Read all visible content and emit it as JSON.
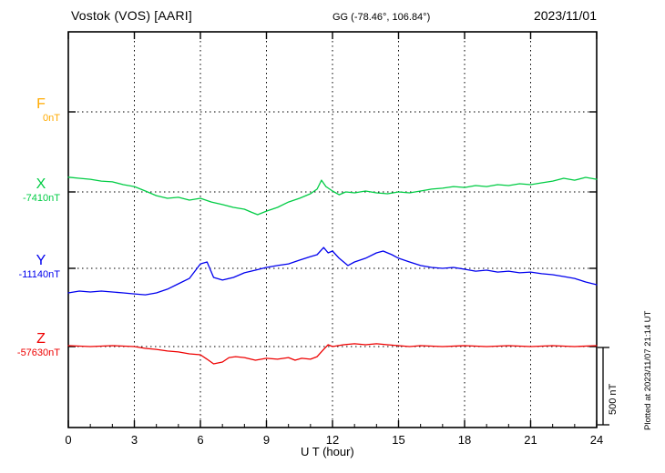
{
  "header": {
    "station": "Vostok (VOS)  [AARI]",
    "coords": "GG (-78.46°, 106.84°)",
    "date": "2023/11/01"
  },
  "axis": {
    "xlabel": "U T (hour)"
  },
  "scale_bar": {
    "label": "500 nT",
    "nT": 500
  },
  "footer": {
    "plotted_note": "Plotted at 2023/11/07 21:14 UT"
  },
  "chart_data": {
    "type": "line",
    "title": "Vostok (VOS)  [AARI] magnetogram",
    "xlabel": "U T (hour)",
    "xlim": [
      0,
      24
    ],
    "x_ticks": [
      0,
      3,
      6,
      9,
      12,
      15,
      18,
      21,
      24
    ],
    "grid": "vertical dotted at 3h intervals, dotted horizontal baseline per component",
    "scale_nT_per_division": 500,
    "series": [
      {
        "name": "F",
        "baseline_label": "0nT",
        "color": "#FFAA00",
        "points": []
      },
      {
        "name": "X",
        "baseline_label": "-7410nT",
        "color": "#00CC44",
        "points": [
          [
            0,
            95
          ],
          [
            0.5,
            88
          ],
          [
            1,
            82
          ],
          [
            1.5,
            70
          ],
          [
            2,
            65
          ],
          [
            2.5,
            47
          ],
          [
            3,
            35
          ],
          [
            3.5,
            6
          ],
          [
            4,
            -24
          ],
          [
            4.5,
            -41
          ],
          [
            5,
            -35
          ],
          [
            5.5,
            -53
          ],
          [
            6,
            -41
          ],
          [
            6.5,
            -65
          ],
          [
            7,
            -82
          ],
          [
            7.5,
            -100
          ],
          [
            8,
            -112
          ],
          [
            8.3,
            -130
          ],
          [
            8.6,
            -147
          ],
          [
            9,
            -124
          ],
          [
            9.5,
            -100
          ],
          [
            10,
            -65
          ],
          [
            10.5,
            -41
          ],
          [
            11,
            -12
          ],
          [
            11.3,
            18
          ],
          [
            11.5,
            76
          ],
          [
            11.7,
            35
          ],
          [
            12,
            6
          ],
          [
            12.3,
            -18
          ],
          [
            12.6,
            0
          ],
          [
            13,
            -6
          ],
          [
            13.5,
            6
          ],
          [
            14,
            -6
          ],
          [
            14.5,
            -12
          ],
          [
            15,
            0
          ],
          [
            15.5,
            -6
          ],
          [
            16,
            6
          ],
          [
            16.5,
            18
          ],
          [
            17,
            24
          ],
          [
            17.5,
            35
          ],
          [
            18,
            29
          ],
          [
            18.5,
            41
          ],
          [
            19,
            35
          ],
          [
            19.5,
            47
          ],
          [
            20,
            41
          ],
          [
            20.5,
            53
          ],
          [
            21,
            47
          ],
          [
            21.5,
            59
          ],
          [
            22,
            70
          ],
          [
            22.5,
            88
          ],
          [
            23,
            76
          ],
          [
            23.5,
            94
          ],
          [
            24,
            82
          ]
        ]
      },
      {
        "name": "Y",
        "baseline_label": "-11140nT",
        "color": "#0000EE",
        "points": [
          [
            0,
            -159
          ],
          [
            0.5,
            -147
          ],
          [
            1,
            -153
          ],
          [
            1.5,
            -147
          ],
          [
            2,
            -153
          ],
          [
            2.5,
            -159
          ],
          [
            3,
            -165
          ],
          [
            3.5,
            -171
          ],
          [
            4,
            -159
          ],
          [
            4.5,
            -135
          ],
          [
            5,
            -100
          ],
          [
            5.5,
            -65
          ],
          [
            6,
            29
          ],
          [
            6.3,
            41
          ],
          [
            6.6,
            -59
          ],
          [
            7,
            -76
          ],
          [
            7.5,
            -59
          ],
          [
            8,
            -29
          ],
          [
            8.5,
            -12
          ],
          [
            9,
            6
          ],
          [
            9.5,
            18
          ],
          [
            10,
            29
          ],
          [
            10.5,
            53
          ],
          [
            11,
            76
          ],
          [
            11.3,
            88
          ],
          [
            11.6,
            135
          ],
          [
            11.8,
            100
          ],
          [
            12,
            112
          ],
          [
            12.3,
            65
          ],
          [
            12.7,
            18
          ],
          [
            13,
            41
          ],
          [
            13.5,
            65
          ],
          [
            14,
            100
          ],
          [
            14.3,
            112
          ],
          [
            14.7,
            88
          ],
          [
            15,
            65
          ],
          [
            15.5,
            41
          ],
          [
            16,
            18
          ],
          [
            16.5,
            6
          ],
          [
            17,
            0
          ],
          [
            17.5,
            6
          ],
          [
            18,
            -6
          ],
          [
            18.5,
            -18
          ],
          [
            19,
            -12
          ],
          [
            19.5,
            -24
          ],
          [
            20,
            -18
          ],
          [
            20.5,
            -29
          ],
          [
            21,
            -24
          ],
          [
            21.5,
            -35
          ],
          [
            22,
            -41
          ],
          [
            22.5,
            -53
          ],
          [
            23,
            -65
          ],
          [
            23.5,
            -88
          ],
          [
            24,
            -106
          ]
        ]
      },
      {
        "name": "Z",
        "baseline_label": "-57630nT",
        "color": "#EE0000",
        "points": [
          [
            0,
            6
          ],
          [
            1,
            0
          ],
          [
            2,
            6
          ],
          [
            3,
            0
          ],
          [
            3.5,
            -12
          ],
          [
            4,
            -18
          ],
          [
            4.5,
            -29
          ],
          [
            5,
            -35
          ],
          [
            5.5,
            -47
          ],
          [
            6,
            -53
          ],
          [
            6.3,
            -82
          ],
          [
            6.6,
            -112
          ],
          [
            7,
            -100
          ],
          [
            7.3,
            -71
          ],
          [
            7.6,
            -65
          ],
          [
            8,
            -71
          ],
          [
            8.5,
            -88
          ],
          [
            9,
            -76
          ],
          [
            9.5,
            -82
          ],
          [
            10,
            -71
          ],
          [
            10.3,
            -88
          ],
          [
            10.6,
            -76
          ],
          [
            11,
            -82
          ],
          [
            11.3,
            -65
          ],
          [
            11.6,
            -18
          ],
          [
            11.8,
            12
          ],
          [
            12,
            0
          ],
          [
            12.5,
            12
          ],
          [
            13,
            18
          ],
          [
            13.5,
            12
          ],
          [
            14,
            18
          ],
          [
            14.5,
            12
          ],
          [
            15,
            6
          ],
          [
            15.5,
            0
          ],
          [
            16,
            6
          ],
          [
            17,
            0
          ],
          [
            18,
            6
          ],
          [
            19,
            0
          ],
          [
            20,
            6
          ],
          [
            21,
            0
          ],
          [
            22,
            6
          ],
          [
            23,
            0
          ],
          [
            24,
            6
          ]
        ]
      }
    ]
  }
}
